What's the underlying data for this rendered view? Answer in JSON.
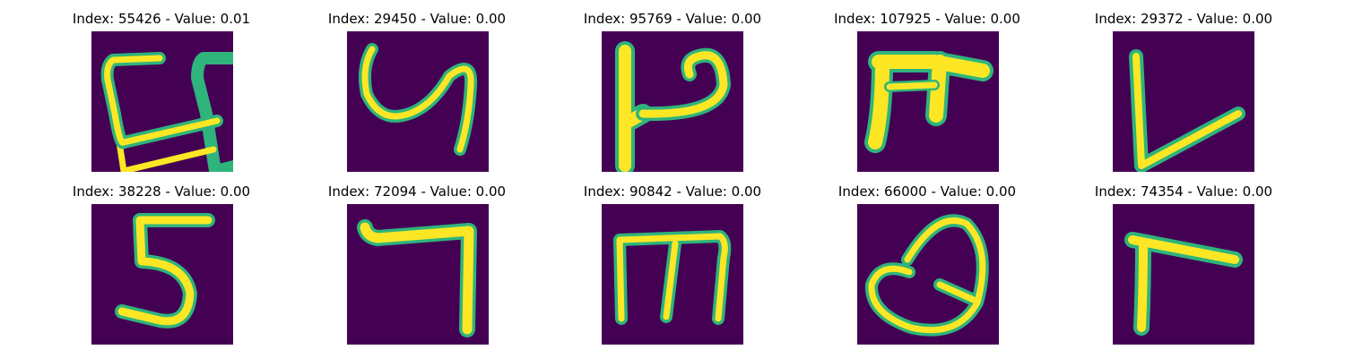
{
  "figure": {
    "panels": [
      {
        "title": "Index: 55426 - Value: 0.01",
        "glyph": "C-like character"
      },
      {
        "title": "Index: 29450 - Value: 0.00",
        "glyph": "y-like character"
      },
      {
        "title": "Index: 95769 - Value: 0.00",
        "glyph": "P-like character"
      },
      {
        "title": "Index: 107925 - Value: 0.00",
        "glyph": "F-like character"
      },
      {
        "title": "Index: 29372 - Value: 0.00",
        "glyph": "L-like character"
      },
      {
        "title": "Index: 38228 - Value: 0.00",
        "glyph": "5-like character"
      },
      {
        "title": "Index: 72094 - Value: 0.00",
        "glyph": "7-like character"
      },
      {
        "title": "Index: 90842 - Value: 0.00",
        "glyph": "m-like character"
      },
      {
        "title": "Index: 66000 - Value: 0.00",
        "glyph": "Q-like character"
      },
      {
        "title": "Index: 74354 - Value: 0.00",
        "glyph": "r-like character"
      }
    ],
    "colors": {
      "background": "#440154",
      "stroke_core": "#fde725",
      "stroke_edge": "#2fb47c"
    }
  }
}
